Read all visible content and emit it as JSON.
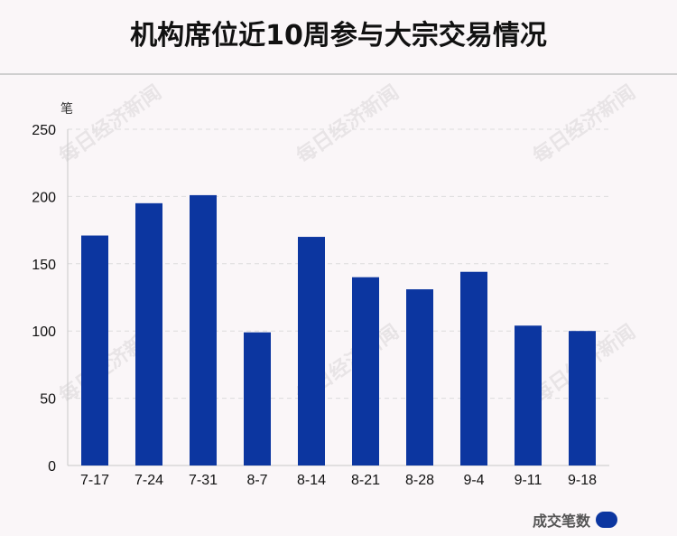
{
  "page": {
    "title": "机构席位近10周参与大宗交易情况",
    "watermark": "每日经济新闻"
  },
  "chart_data": {
    "type": "bar",
    "title": "机构席位近10周参与大宗交易情况",
    "ylabel": "笔",
    "xlabel": "",
    "categories": [
      "7-17",
      "7-24",
      "7-31",
      "8-7",
      "8-14",
      "8-21",
      "8-28",
      "9-4",
      "9-11",
      "9-18"
    ],
    "series": [
      {
        "name": "成交笔数",
        "values": [
          171,
          195,
          201,
          99,
          170,
          140,
          131,
          144,
          104,
          100
        ],
        "color": "#0c36a0"
      }
    ],
    "ylim": [
      0,
      250
    ],
    "yticks": [
      0,
      50,
      100,
      150,
      200,
      250
    ],
    "grid": true,
    "legend": "bottom-right"
  }
}
